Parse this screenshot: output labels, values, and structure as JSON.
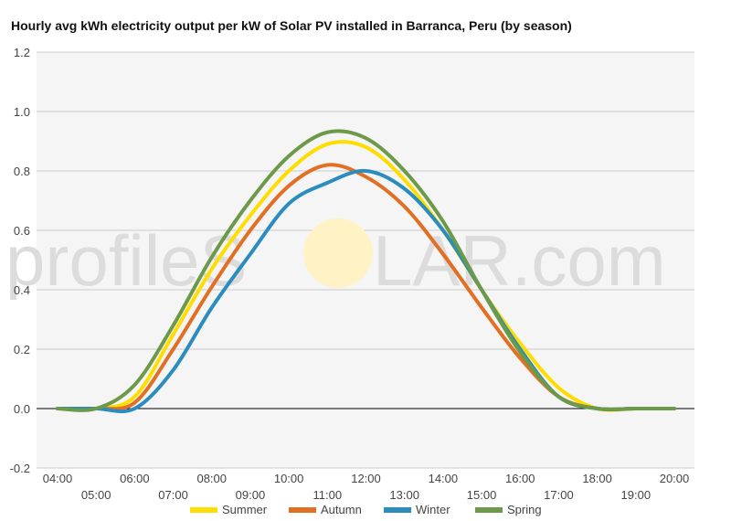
{
  "chart_data": {
    "type": "line",
    "title": "Hourly avg kWh electricity output per kW of Solar PV installed in Barranca, Peru (by season)",
    "xlabel": "",
    "ylabel": "",
    "x_range": [
      4,
      20
    ],
    "ylim": [
      -0.2,
      1.2
    ],
    "y_ticks": [
      -0.2,
      0.0,
      0.2,
      0.4,
      0.6,
      0.8,
      1.0,
      1.2
    ],
    "y_tick_labels": [
      "-0.2",
      "0.0",
      "0.2",
      "0.4",
      "0.6",
      "0.8",
      "1.0",
      "1.2"
    ],
    "x_ticks_upper": [
      4,
      6,
      8,
      10,
      12,
      14,
      16,
      18,
      20
    ],
    "x_ticks_upper_labels": [
      "04:00",
      "06:00",
      "08:00",
      "10:00",
      "12:00",
      "14:00",
      "16:00",
      "18:00",
      "20:00"
    ],
    "x_ticks_lower": [
      5,
      7,
      9,
      11,
      13,
      15,
      17,
      19
    ],
    "x_ticks_lower_labels": [
      "05:00",
      "07:00",
      "09:00",
      "11:00",
      "13:00",
      "15:00",
      "17:00",
      "19:00"
    ],
    "grid": true,
    "legend_position": "bottom",
    "background_color": "#f5f5f5",
    "zero_line_color": "#000000",
    "x": [
      4,
      5,
      6,
      7,
      8,
      9,
      10,
      11,
      12,
      13,
      14,
      15,
      16,
      17,
      18,
      19,
      20
    ],
    "series": [
      {
        "name": "Summer",
        "color": "#ffdd00",
        "values": [
          0.0,
          0.0,
          0.04,
          0.25,
          0.47,
          0.65,
          0.8,
          0.89,
          0.88,
          0.77,
          0.6,
          0.4,
          0.22,
          0.07,
          0.0,
          0.0,
          0.0
        ]
      },
      {
        "name": "Autumn",
        "color": "#e26f24",
        "values": [
          0.0,
          0.0,
          0.02,
          0.2,
          0.41,
          0.6,
          0.75,
          0.82,
          0.78,
          0.68,
          0.52,
          0.34,
          0.17,
          0.04,
          0.0,
          0.0,
          0.0
        ]
      },
      {
        "name": "Winter",
        "color": "#2b8cbe",
        "values": [
          0.0,
          0.0,
          0.0,
          0.13,
          0.34,
          0.52,
          0.69,
          0.76,
          0.8,
          0.74,
          0.6,
          0.4,
          0.2,
          0.04,
          0.0,
          0.0,
          0.0
        ]
      },
      {
        "name": "Spring",
        "color": "#6d9a4a",
        "values": [
          0.0,
          0.0,
          0.08,
          0.28,
          0.51,
          0.7,
          0.85,
          0.93,
          0.91,
          0.8,
          0.63,
          0.4,
          0.19,
          0.04,
          0.0,
          0.0,
          0.0
        ]
      }
    ]
  },
  "watermark": {
    "text_left": "profileS",
    "text_right": "LAR.com",
    "sun_color": "#fff2c4",
    "text_color": "#dcdcdc"
  }
}
